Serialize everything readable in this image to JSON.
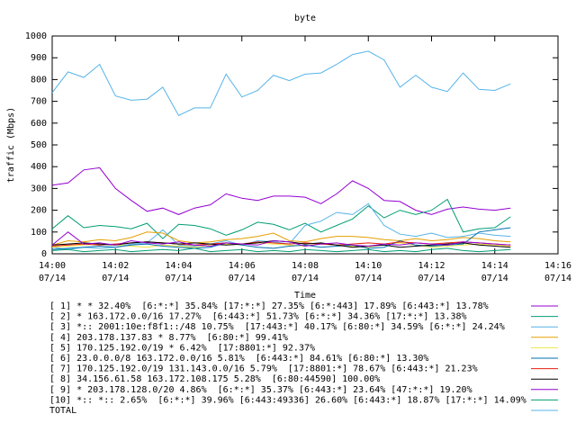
{
  "chart_data": {
    "type": "line",
    "title": "byte",
    "ylabel": "traffic (Mbps)",
    "xlabel": "Time",
    "x": [
      "14:00:00",
      "14:00:30",
      "14:01:00",
      "14:01:30",
      "14:02:00",
      "14:02:30",
      "14:03:00",
      "14:03:30",
      "14:04:00",
      "14:04:30",
      "14:05:00",
      "14:05:30",
      "14:06:00",
      "14:06:30",
      "14:07:00",
      "14:07:30",
      "14:08:00",
      "14:08:30",
      "14:09:00",
      "14:09:30",
      "14:10:00",
      "14:10:30",
      "14:11:00",
      "14:11:30",
      "14:12:00",
      "14:12:30",
      "14:13:00",
      "14:13:30",
      "14:14:00",
      "14:14:30"
    ],
    "xlim": [
      "14:00:00",
      "14:16:00"
    ],
    "xticks": [
      {
        "value": "14:00:00",
        "label": [
          "14:00",
          "07/14"
        ]
      },
      {
        "value": "14:02:00",
        "label": [
          "14:02",
          "07/14"
        ]
      },
      {
        "value": "14:04:00",
        "label": [
          "14:04",
          "07/14"
        ]
      },
      {
        "value": "14:06:00",
        "label": [
          "14:06",
          "07/14"
        ]
      },
      {
        "value": "14:08:00",
        "label": [
          "14:08",
          "07/14"
        ]
      },
      {
        "value": "14:10:00",
        "label": [
          "14:10",
          "07/14"
        ]
      },
      {
        "value": "14:12:00",
        "label": [
          "14:12",
          "07/14"
        ]
      },
      {
        "value": "14:14:00",
        "label": [
          "14:14",
          "07/14"
        ]
      },
      {
        "value": "14:16:00",
        "label": [
          "14:16",
          "07/14"
        ]
      }
    ],
    "ylim": [
      0,
      1000
    ],
    "yticks": [
      0,
      100,
      200,
      300,
      400,
      500,
      600,
      700,
      800,
      900,
      1000
    ],
    "series": [
      {
        "name": "[ 1] * * 32.40%  [6:*:*] 35.84% [17:*:*] 27.35% [6:*:443] 17.89% [6:443:*] 13.78%",
        "color": "#9400d3",
        "values": [
          315,
          325,
          385,
          395,
          300,
          245,
          195,
          210,
          180,
          210,
          225,
          275,
          255,
          245,
          265,
          265,
          260,
          230,
          275,
          335,
          300,
          245,
          240,
          200,
          180,
          205,
          215,
          205,
          200,
          210
        ]
      },
      {
        "name": "[ 2] * 163.172.0.0/16 17.27%  [6:443:*] 51.73% [6:*:*] 34.36% [17:*:*] 13.38%",
        "color": "#009e73",
        "values": [
          115,
          175,
          120,
          130,
          125,
          115,
          140,
          70,
          135,
          130,
          115,
          85,
          110,
          145,
          135,
          110,
          140,
          100,
          130,
          160,
          220,
          165,
          200,
          180,
          200,
          250,
          100,
          115,
          120,
          170
        ]
      },
      {
        "name": "[ 3] *:: 2001:10e:f8f1::/48 10.75%  [17:443:*] 40.17% [6:80:*] 34.59% [6:*:*] 24.24%",
        "color": "#56b4e9",
        "values": [
          30,
          20,
          30,
          25,
          30,
          45,
          50,
          110,
          40,
          35,
          45,
          60,
          40,
          60,
          55,
          45,
          130,
          150,
          190,
          180,
          230,
          130,
          90,
          80,
          95,
          75,
          80,
          95,
          85,
          80
        ]
      },
      {
        "name": "[ 4] 203.178.137.83 * 8.77%  [6:80:*] 99.41%",
        "color": "#e69f00",
        "values": [
          40,
          60,
          55,
          65,
          60,
          75,
          100,
          95,
          60,
          50,
          55,
          65,
          70,
          80,
          95,
          60,
          55,
          70,
          80,
          80,
          75,
          65,
          60,
          70,
          60,
          65,
          75,
          70,
          60,
          55
        ]
      },
      {
        "name": "[ 5] 170.125.192.0/19 * 6.42%  [17:8801:*] 92.37%",
        "color": "#f0e442",
        "values": [
          30,
          35,
          40,
          45,
          40,
          35,
          30,
          40,
          35,
          30,
          40,
          45,
          40,
          50,
          45,
          40,
          35,
          50,
          40,
          35,
          30,
          45,
          50,
          40,
          30,
          35,
          40,
          45,
          40,
          35
        ]
      },
      {
        "name": "[ 6] 23.0.0.0/8 163.172.0.0/16 5.81%  [6:443:*] 84.61% [6:80:*] 13.30%",
        "color": "#0072b2",
        "values": [
          20,
          25,
          30,
          35,
          30,
          40,
          45,
          35,
          30,
          25,
          30,
          50,
          40,
          30,
          25,
          35,
          40,
          30,
          35,
          40,
          25,
          30,
          60,
          40,
          35,
          40,
          45,
          100,
          110,
          120
        ]
      },
      {
        "name": "[ 7] 170.125.192.0/19 131.143.0.0/16 5.79%  [17:8801:*] 78.67% [6:443:*] 21.23%",
        "color": "#e51e10",
        "values": [
          35,
          40,
          45,
          40,
          45,
          50,
          55,
          50,
          45,
          40,
          45,
          50,
          45,
          55,
          50,
          45,
          50,
          45,
          40,
          45,
          50,
          45,
          55,
          50,
          45,
          50,
          55,
          50,
          45,
          40
        ]
      },
      {
        "name": "[ 8] 34.156.61.58 163.172.108.175 5.28%  [6:80:44590] 100.00%",
        "color": "#000000",
        "values": [
          40,
          45,
          50,
          45,
          40,
          50,
          55,
          50,
          45,
          50,
          45,
          40,
          45,
          50,
          60,
          55,
          45,
          50,
          40,
          30,
          35,
          40,
          30,
          35,
          40,
          45,
          50,
          40,
          35,
          30
        ]
      },
      {
        "name": "[ 9] * 203.178.128.0/20 4.86%  [6:*:*] 35.37% [6:443:*] 23.64% [47:*:*] 19.20%",
        "color": "#9400d3",
        "values": [
          40,
          100,
          45,
          50,
          40,
          60,
          50,
          45,
          55,
          40,
          35,
          50,
          45,
          40,
          60,
          55,
          35,
          45,
          50,
          40,
          35,
          45,
          40,
          50,
          45,
          40,
          55,
          50,
          45,
          40
        ]
      },
      {
        "name": "[10] *:: *:: 2.65%  [6:*:*] 39.96% [6:443:49336] 26.60% [6:443:*] 18.87% [17:*:*] 14.09%",
        "color": "#009e73",
        "values": [
          15,
          20,
          10,
          15,
          20,
          10,
          15,
          20,
          15,
          25,
          10,
          15,
          20,
          10,
          15,
          10,
          20,
          15,
          10,
          15,
          20,
          10,
          15,
          10,
          20,
          25,
          15,
          10,
          15,
          20
        ]
      },
      {
        "name": "TOTAL",
        "color": "#56b4e9",
        "values": [
          740,
          835,
          810,
          870,
          725,
          705,
          710,
          765,
          635,
          670,
          670,
          825,
          720,
          750,
          820,
          795,
          825,
          830,
          870,
          915,
          930,
          890,
          765,
          820,
          765,
          745,
          830,
          755,
          750,
          780
        ]
      }
    ]
  }
}
